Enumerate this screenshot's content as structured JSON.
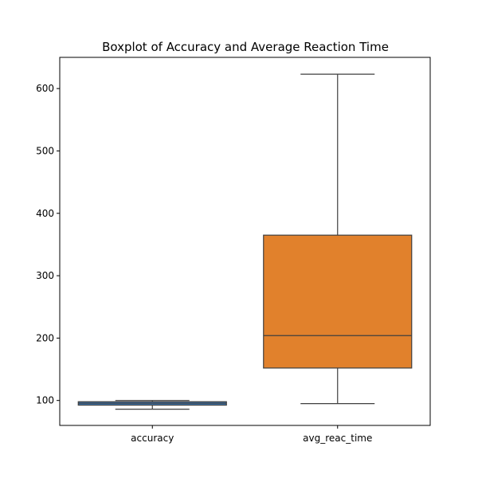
{
  "chart_data": {
    "type": "boxplot",
    "title": "Boxplot of Accuracy and Average Reaction Time",
    "xlabel": "",
    "ylabel": "",
    "categories": [
      "accuracy",
      "avg_reac_time"
    ],
    "boxes": [
      {
        "category": "accuracy",
        "whisker_low": 86,
        "q1": 92.5,
        "median": 95.5,
        "q3": 98,
        "whisker_high": 100,
        "color": "#3d75ad"
      },
      {
        "category": "avg_reac_time",
        "whisker_low": 95,
        "q1": 152,
        "median": 204,
        "q3": 365,
        "whisker_high": 623,
        "color": "#e1812c"
      }
    ],
    "yticks": [
      100,
      200,
      300,
      400,
      500,
      600
    ],
    "ylim": [
      60,
      650
    ],
    "grid": false,
    "line_color": "#3f3f3f"
  }
}
